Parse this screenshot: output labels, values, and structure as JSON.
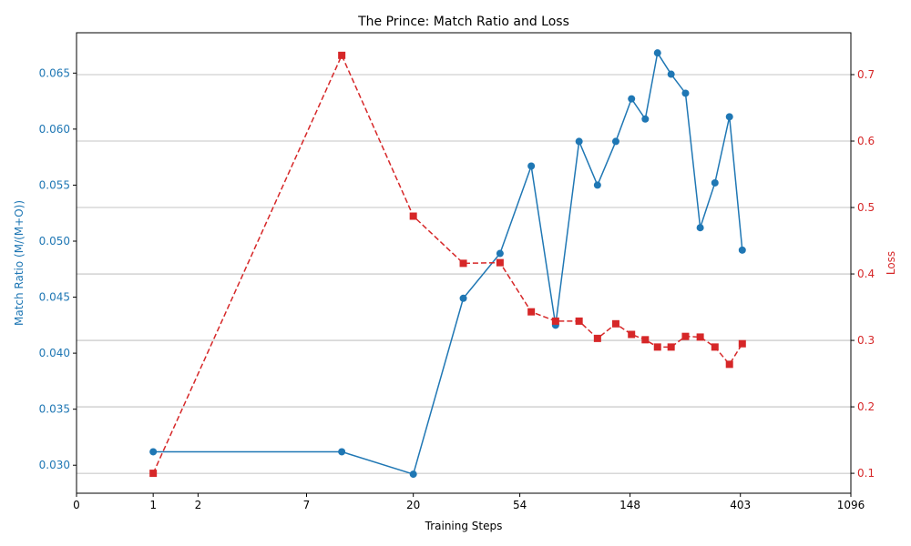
{
  "chart_data": {
    "type": "line",
    "title": "The Prince: Match Ratio and Loss",
    "xlabel": "Training Steps",
    "ylabel_left": "Match Ratio (M/(M+O))",
    "ylabel_right": "Loss",
    "x_scale": "log1p",
    "x_ticks": [
      0,
      1,
      2,
      7,
      20,
      54,
      148,
      403,
      1096
    ],
    "x_tick_labels": [
      "0",
      "1",
      "2",
      "7",
      "20",
      "54",
      "148",
      "403",
      "1096"
    ],
    "xlim": [
      0,
      1096
    ],
    "ylim_left": [
      0.0275,
      0.0686
    ],
    "ylim_right": [
      0.07,
      0.763
    ],
    "y_ticks_left": [
      "0.030",
      "0.035",
      "0.040",
      "0.045",
      "0.050",
      "0.055",
      "0.060",
      "0.065"
    ],
    "y_ticks_right": [
      "0.1",
      "0.2",
      "0.3",
      "0.4",
      "0.5",
      "0.6",
      "0.7"
    ],
    "grid": "horizontal (right axis)",
    "colors": {
      "match_ratio": "#1f77b4",
      "loss": "#d62728"
    },
    "x": [
      1,
      10,
      20,
      32,
      45,
      60,
      75,
      93,
      110,
      130,
      150,
      170,
      190,
      215,
      245,
      280,
      320,
      365,
      410
    ],
    "series": [
      {
        "axis": "left",
        "style": "solid-circle",
        "values": [
          0.0312,
          0.0312,
          0.0292,
          0.0449,
          0.0489,
          0.0567,
          0.0425,
          0.0589,
          0.055,
          0.0589,
          0.0627,
          0.0609,
          0.0668,
          0.0649,
          0.0632,
          0.0512,
          0.0552,
          0.0611,
          0.0492
        ]
      },
      {
        "axis": "right",
        "style": "dashed-square",
        "values": [
          0.1,
          0.729,
          0.487,
          0.416,
          0.417,
          0.343,
          0.329,
          0.329,
          0.303,
          0.325,
          0.309,
          0.301,
          0.29,
          0.29,
          0.306,
          0.305,
          0.29,
          0.264,
          0.295
        ]
      }
    ]
  }
}
